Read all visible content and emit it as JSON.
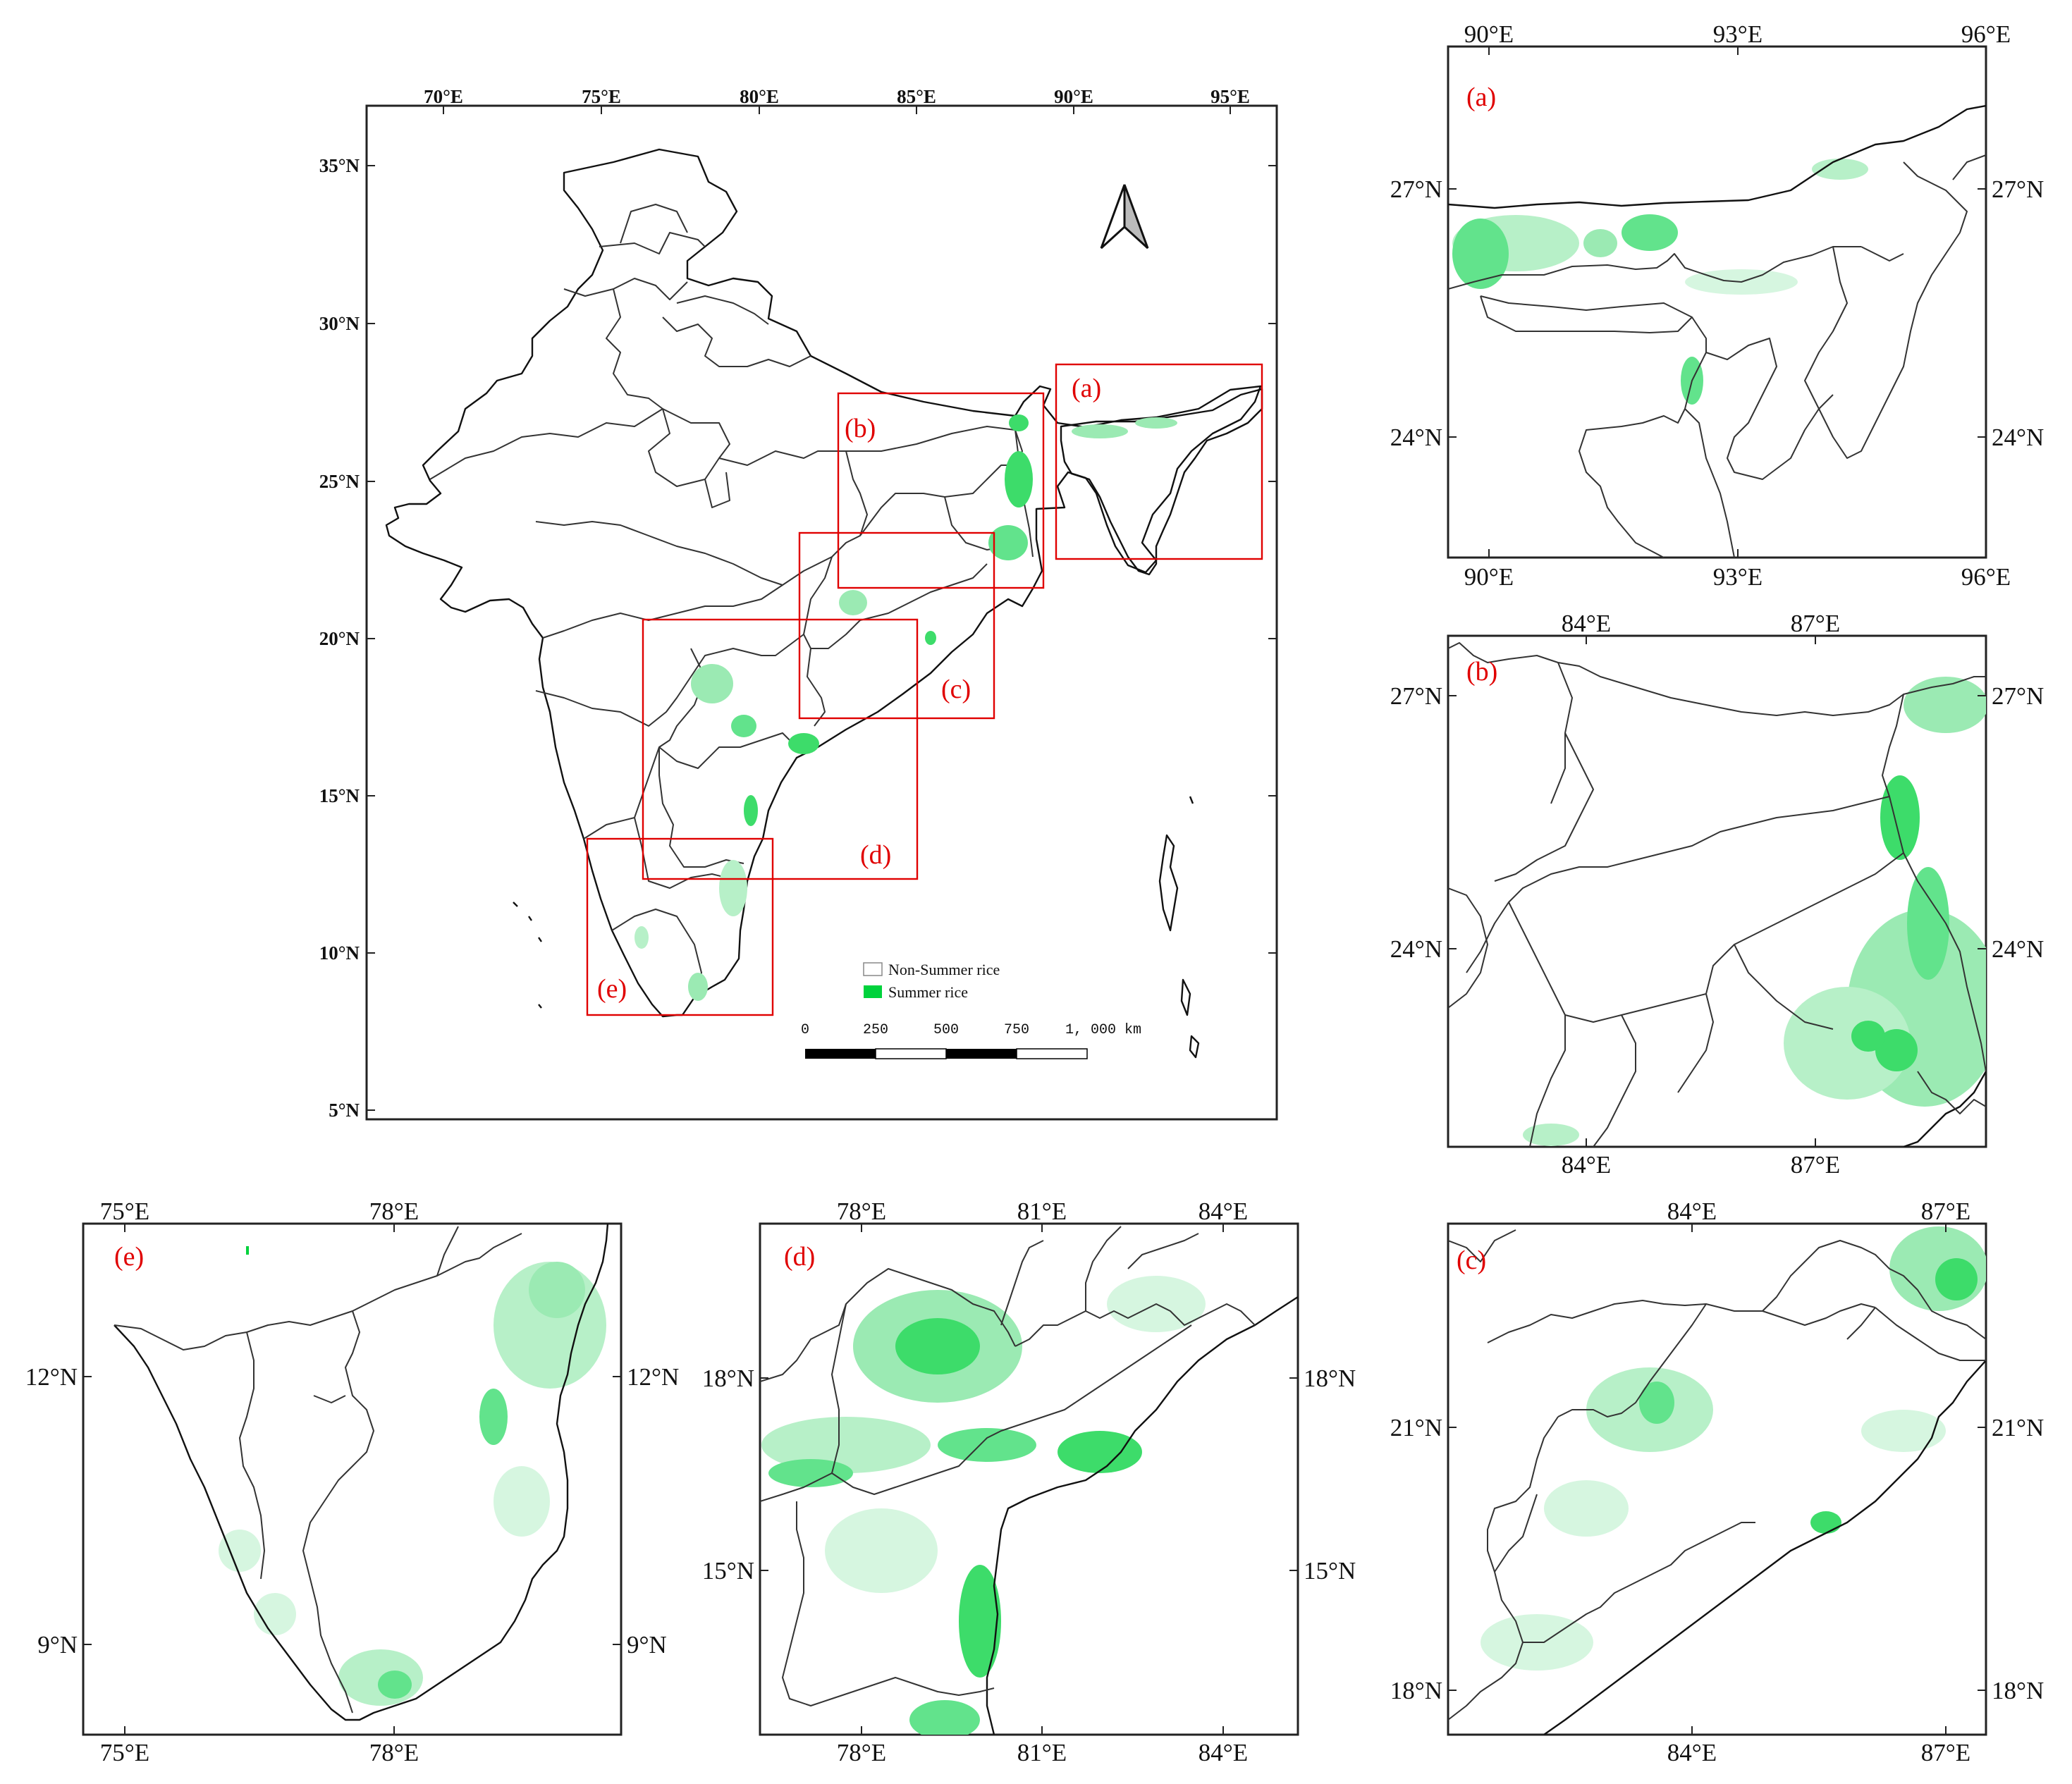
{
  "colors": {
    "summer_rice": "#00d23c",
    "summer_rice_light": "#62e38c",
    "non_summer_rice": "#ffffff",
    "inset_frame": "#e00000",
    "label_color": "#e00000"
  },
  "main_map": {
    "lon_ticks": [
      "70°E",
      "75°E",
      "80°E",
      "85°E",
      "90°E",
      "95°E"
    ],
    "lat_ticks": [
      "35°N",
      "30°N",
      "25°N",
      "20°N",
      "15°N",
      "10°N",
      "5°N"
    ],
    "north_arrow": "north-arrow-icon",
    "inset_labels": [
      "(a)",
      "(b)",
      "(c)",
      "(d)",
      "(e)"
    ],
    "legend": {
      "items": [
        {
          "label": "Non-Summer rice",
          "color": "#ffffff"
        },
        {
          "label": "Summer rice",
          "color": "#00d23c"
        }
      ]
    },
    "scale_bar": {
      "labels": [
        "0",
        "250",
        "500",
        "750",
        "1, 000 km"
      ]
    }
  },
  "panels": {
    "a": {
      "label": "(a)",
      "lon_ticks": [
        "90°E",
        "93°E",
        "96°E"
      ],
      "lat_ticks": [
        "27°N",
        "24°N"
      ]
    },
    "b": {
      "label": "(b)",
      "lon_ticks": [
        "84°E",
        "87°E"
      ],
      "lat_ticks": [
        "27°N",
        "24°N"
      ]
    },
    "c": {
      "label": "(c)",
      "lon_ticks": [
        "84°E",
        "87°E"
      ],
      "lat_ticks": [
        "21°N",
        "18°N"
      ]
    },
    "d": {
      "label": "(d)",
      "lon_ticks": [
        "78°E",
        "81°E",
        "84°E"
      ],
      "lat_ticks": [
        "18°N",
        "15°N"
      ]
    },
    "e": {
      "label": "(e)",
      "lon_ticks": [
        "75°E",
        "78°E"
      ],
      "lat_ticks": [
        "12°N",
        "9°N"
      ]
    }
  }
}
